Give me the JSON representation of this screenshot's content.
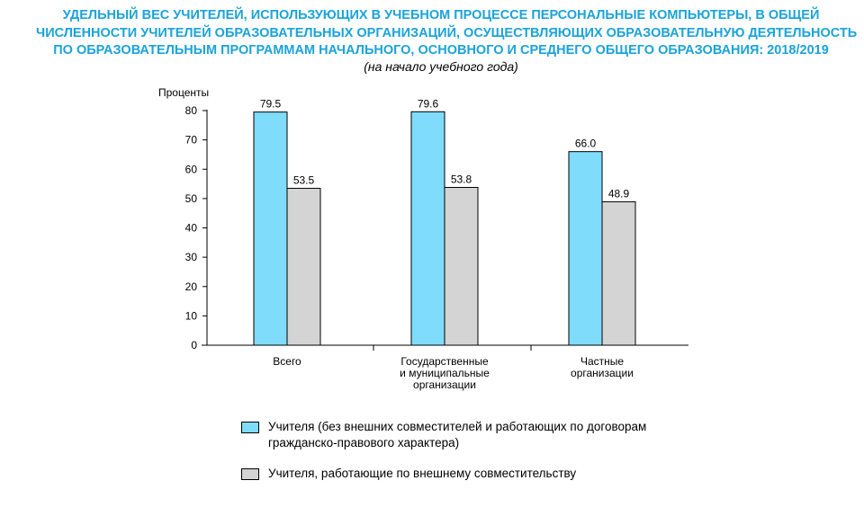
{
  "title_lines": [
    "УДЕЛЬНЫЙ ВЕС УЧИТЕЛЕЙ, ИСПОЛЬЗУЮЩИХ В УЧЕБНОМ ПРОЦЕССЕ ПЕРСОНАЛЬНЫЕ КОМПЬЮТЕРЫ, В ОБЩЕЙ",
    "ЧИСЛЕННОСТИ УЧИТЕЛЕЙ ОБРАЗОВАТЕЛЬНЫХ ОРГАНИЗАЦИЙ, ОСУЩЕСТВЛЯЮЩИХ ОБРАЗОВАТЕЛЬНУЮ ДЕЯТЕЛЬНОСТЬ",
    "ПО ОБРАЗОВАТЕЛЬНЫМ ПРОГРАММАМ НАЧАЛЬНОГО, ОСНОВНОГО И СРЕДНЕГО ОБЩЕГО ОБРАЗОВАНИЯ: 2018/2019"
  ],
  "subtitle": "(на начало учебного года)",
  "colors": {
    "title": "#1aa3d9",
    "series1": "#7fdcfa",
    "series2": "#d4d4d4"
  },
  "chart_data": {
    "type": "bar",
    "ylabel": "Проценты",
    "ylim": [
      0,
      80
    ],
    "yticks": [
      0,
      10,
      20,
      30,
      40,
      50,
      60,
      70,
      80
    ],
    "categories": [
      [
        "Всего"
      ],
      [
        "Государственные",
        "и муниципальные",
        "организации"
      ],
      [
        "Частные",
        "организации"
      ]
    ],
    "series": [
      {
        "name": "Учителя (без внешних совместителей и работающих по договорам гражданско-правового характера)",
        "values": [
          79.5,
          79.6,
          66.0
        ],
        "labels": [
          "79.5",
          "79.6",
          "66.0"
        ]
      },
      {
        "name": "Учителя, работающие по внешнему совместительству",
        "values": [
          53.5,
          53.8,
          48.9
        ],
        "labels": [
          "53.5",
          "53.8",
          "48.9"
        ]
      }
    ],
    "grid": false,
    "legend_position": "bottom"
  },
  "legend": {
    "item1_lines": [
      "Учителя (без внешних совместителей и работающих по договорам",
      "гражданско-правового характера)"
    ],
    "item2": "Учителя, работающие по внешнему совместительству"
  }
}
